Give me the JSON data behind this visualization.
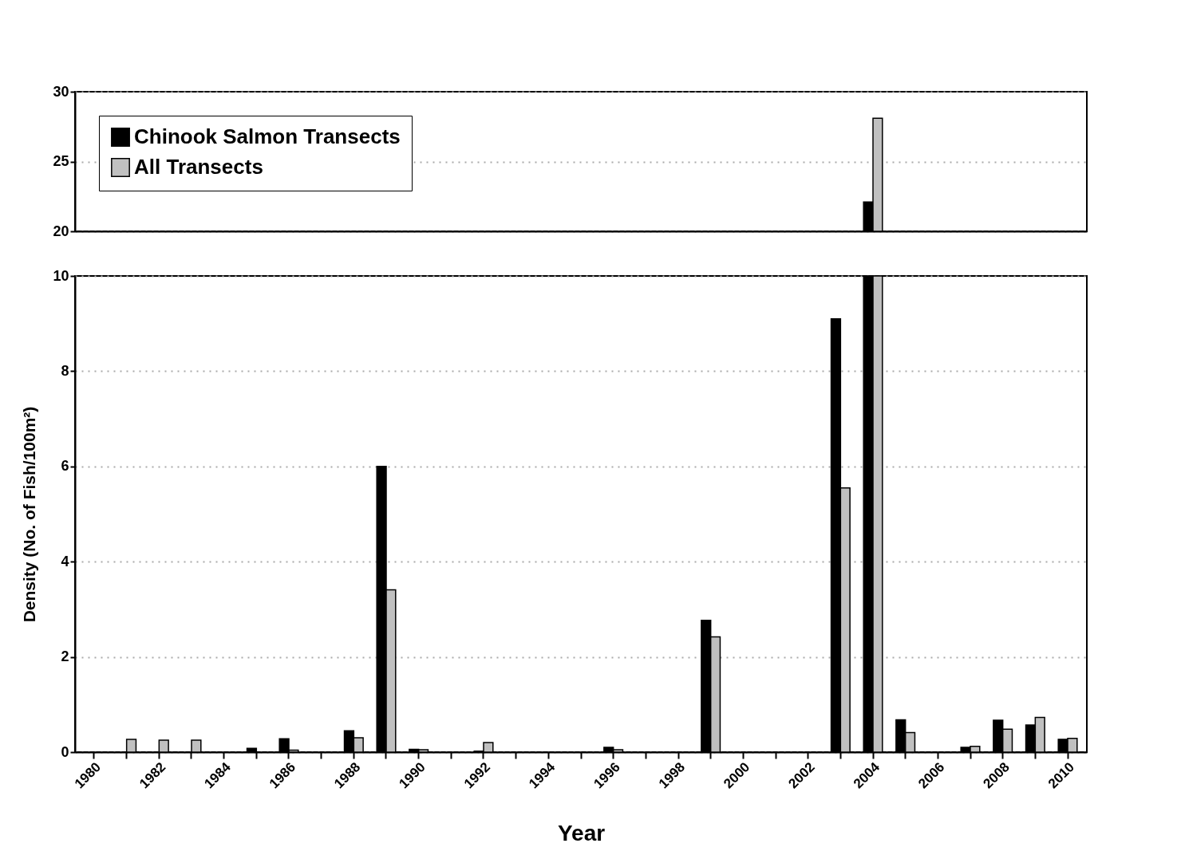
{
  "chart_data": [
    {
      "type": "bar",
      "categories": [
        "1980",
        null,
        "1982",
        null,
        "1984",
        null,
        "1986",
        null,
        "1988",
        null,
        "1990",
        null,
        "1992",
        null,
        "1994",
        null,
        "1996",
        null,
        "1998",
        null,
        "2000",
        null,
        "2002",
        null,
        "2004",
        null,
        "2006",
        null,
        "2008",
        null,
        "2010"
      ],
      "series": [
        {
          "name": "Chinook Salmon Transects",
          "color": "#000000",
          "values": [
            null,
            null,
            null,
            null,
            null,
            null,
            null,
            null,
            null,
            null,
            null,
            null,
            null,
            null,
            null,
            null,
            null,
            null,
            null,
            null,
            null,
            null,
            null,
            null,
            22.1,
            null,
            null,
            null,
            null,
            null,
            null
          ]
        },
        {
          "name": "All Transects",
          "color": "#c0c0c0",
          "values": [
            null,
            null,
            null,
            null,
            null,
            null,
            null,
            null,
            null,
            null,
            null,
            null,
            null,
            null,
            null,
            null,
            null,
            null,
            null,
            null,
            null,
            null,
            null,
            null,
            28.1,
            null,
            null,
            null,
            null,
            null,
            null
          ]
        }
      ],
      "ylim": [
        20,
        30
      ],
      "yticks": [
        20,
        25,
        30
      ],
      "grid": "y",
      "legend": "top left",
      "tick_labels": "y"
    },
    {
      "type": "bar",
      "categories": [
        "1980",
        null,
        "1982",
        null,
        "1984",
        null,
        "1986",
        null,
        "1988",
        null,
        "1990",
        null,
        "1992",
        null,
        "1994",
        null,
        "1996",
        null,
        "1998",
        null,
        "2000",
        null,
        "2002",
        null,
        "2004",
        null,
        "2006",
        null,
        "2008",
        null,
        "2010"
      ],
      "series": [
        {
          "name": "Chinook Salmon Transects",
          "color": "#000000",
          "values": [
            null,
            null,
            null,
            null,
            null,
            0.08,
            0.28,
            null,
            0.45,
            6.0,
            0.06,
            null,
            0.02,
            null,
            null,
            null,
            0.1,
            null,
            null,
            2.77,
            null,
            null,
            null,
            9.1,
            10,
            0.68,
            null,
            0.1,
            0.67,
            0.57,
            0.27
          ]
        },
        {
          "name": "All Transects",
          "color": "#c0c0c0",
          "values": [
            null,
            0.27,
            0.25,
            0.25,
            null,
            null,
            0.04,
            null,
            0.3,
            3.41,
            0.05,
            null,
            0.2,
            null,
            null,
            null,
            0.05,
            null,
            null,
            2.42,
            null,
            null,
            null,
            5.55,
            10,
            0.41,
            null,
            0.12,
            0.48,
            0.73,
            0.29
          ]
        }
      ],
      "ylim": [
        0,
        10
      ],
      "yticks": [
        0,
        2,
        4,
        6,
        8,
        10
      ],
      "grid": "y",
      "legend": false,
      "xlabel": "Year",
      "ylabel": "Density (No. of Fish/100m²)"
    }
  ]
}
